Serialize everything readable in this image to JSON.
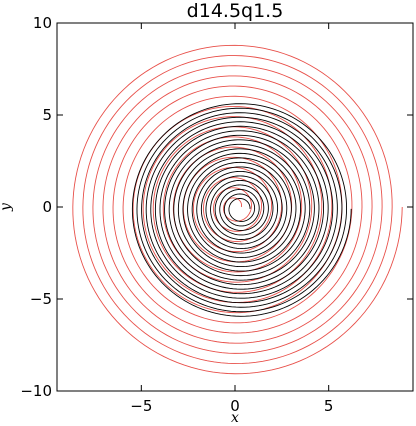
{
  "chart_data": {
    "type": "line",
    "title": "d14.5q1.5",
    "xlabel": "x",
    "ylabel": "y",
    "xlim": [
      -9.5,
      9.5
    ],
    "ylim": [
      -10,
      10
    ],
    "xticks": [
      -5,
      0,
      5
    ],
    "xtick_labels": [
      "−5",
      "0",
      "5"
    ],
    "yticks": [
      -10,
      -5,
      0,
      5,
      10
    ],
    "ytick_labels": [
      "−10",
      "−5",
      "0",
      "5",
      "10"
    ],
    "grid": false,
    "legend": "none",
    "series": [
      {
        "color": "#e8504a",
        "kind": "spiral",
        "center": [
          0.0,
          0.0
        ],
        "r_start": 0.35,
        "r_end": 9.2,
        "turns": 16,
        "ellipse_scale": [
          0.97,
          1.0
        ]
      },
      {
        "color": "#000000",
        "kind": "spiral",
        "center": [
          0.3,
          -0.1
        ],
        "r_start": 0.5,
        "r_end": 5.9,
        "turns": 22,
        "ellipse_scale": [
          1.0,
          1.0
        ]
      }
    ]
  }
}
